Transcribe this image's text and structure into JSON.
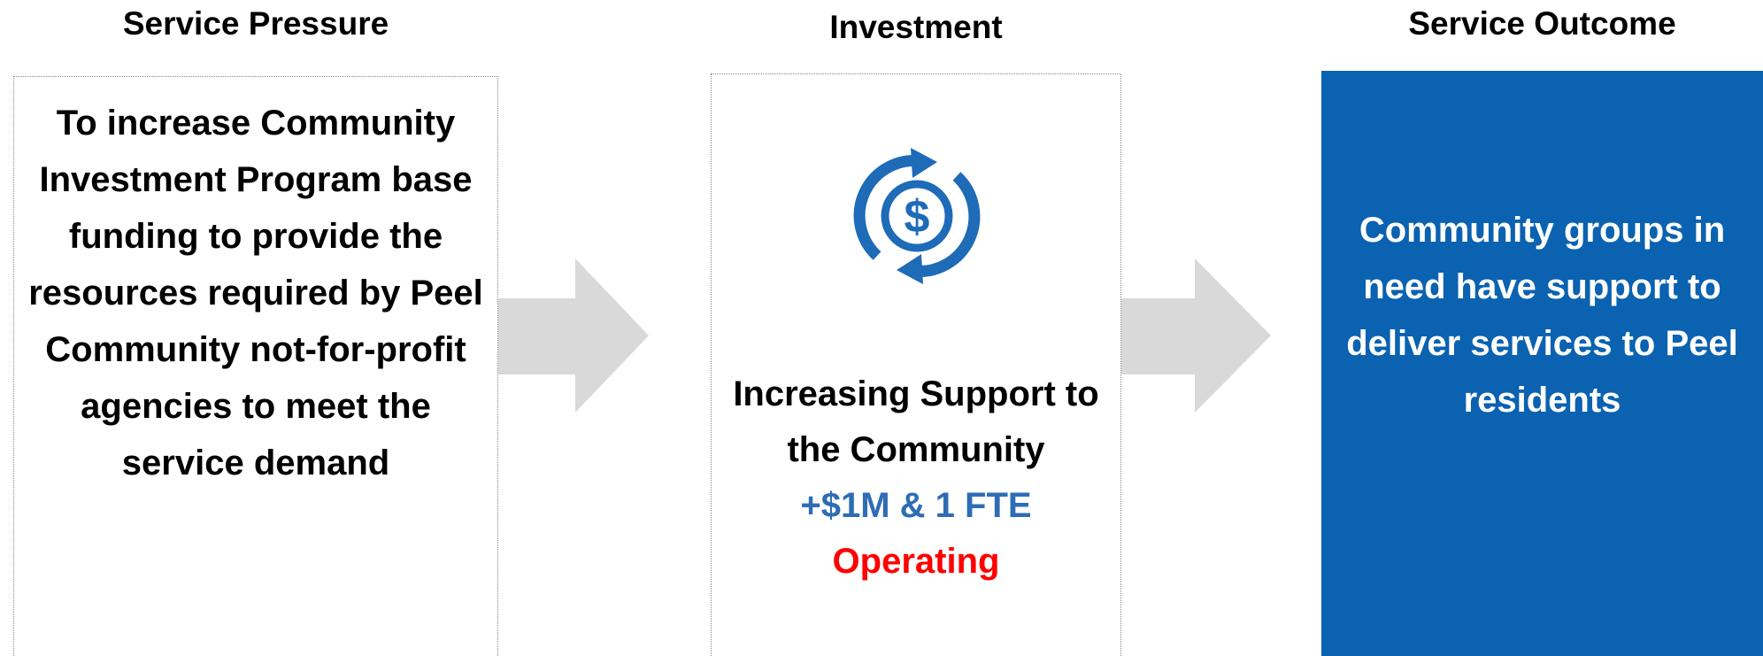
{
  "columns": [
    {
      "heading": "Service Pressure",
      "text": "To increase Community Investment Program base funding to provide the resources required by Peel Community not-for-profit agencies to meet the service demand"
    },
    {
      "heading": "Investment",
      "text": "Increasing Support to the Community",
      "amount": "+$1M & 1 FTE",
      "kind": "Operating"
    },
    {
      "heading": "Service Outcome",
      "text": "Community groups in need have support to deliver services to Peel residents"
    }
  ]
}
